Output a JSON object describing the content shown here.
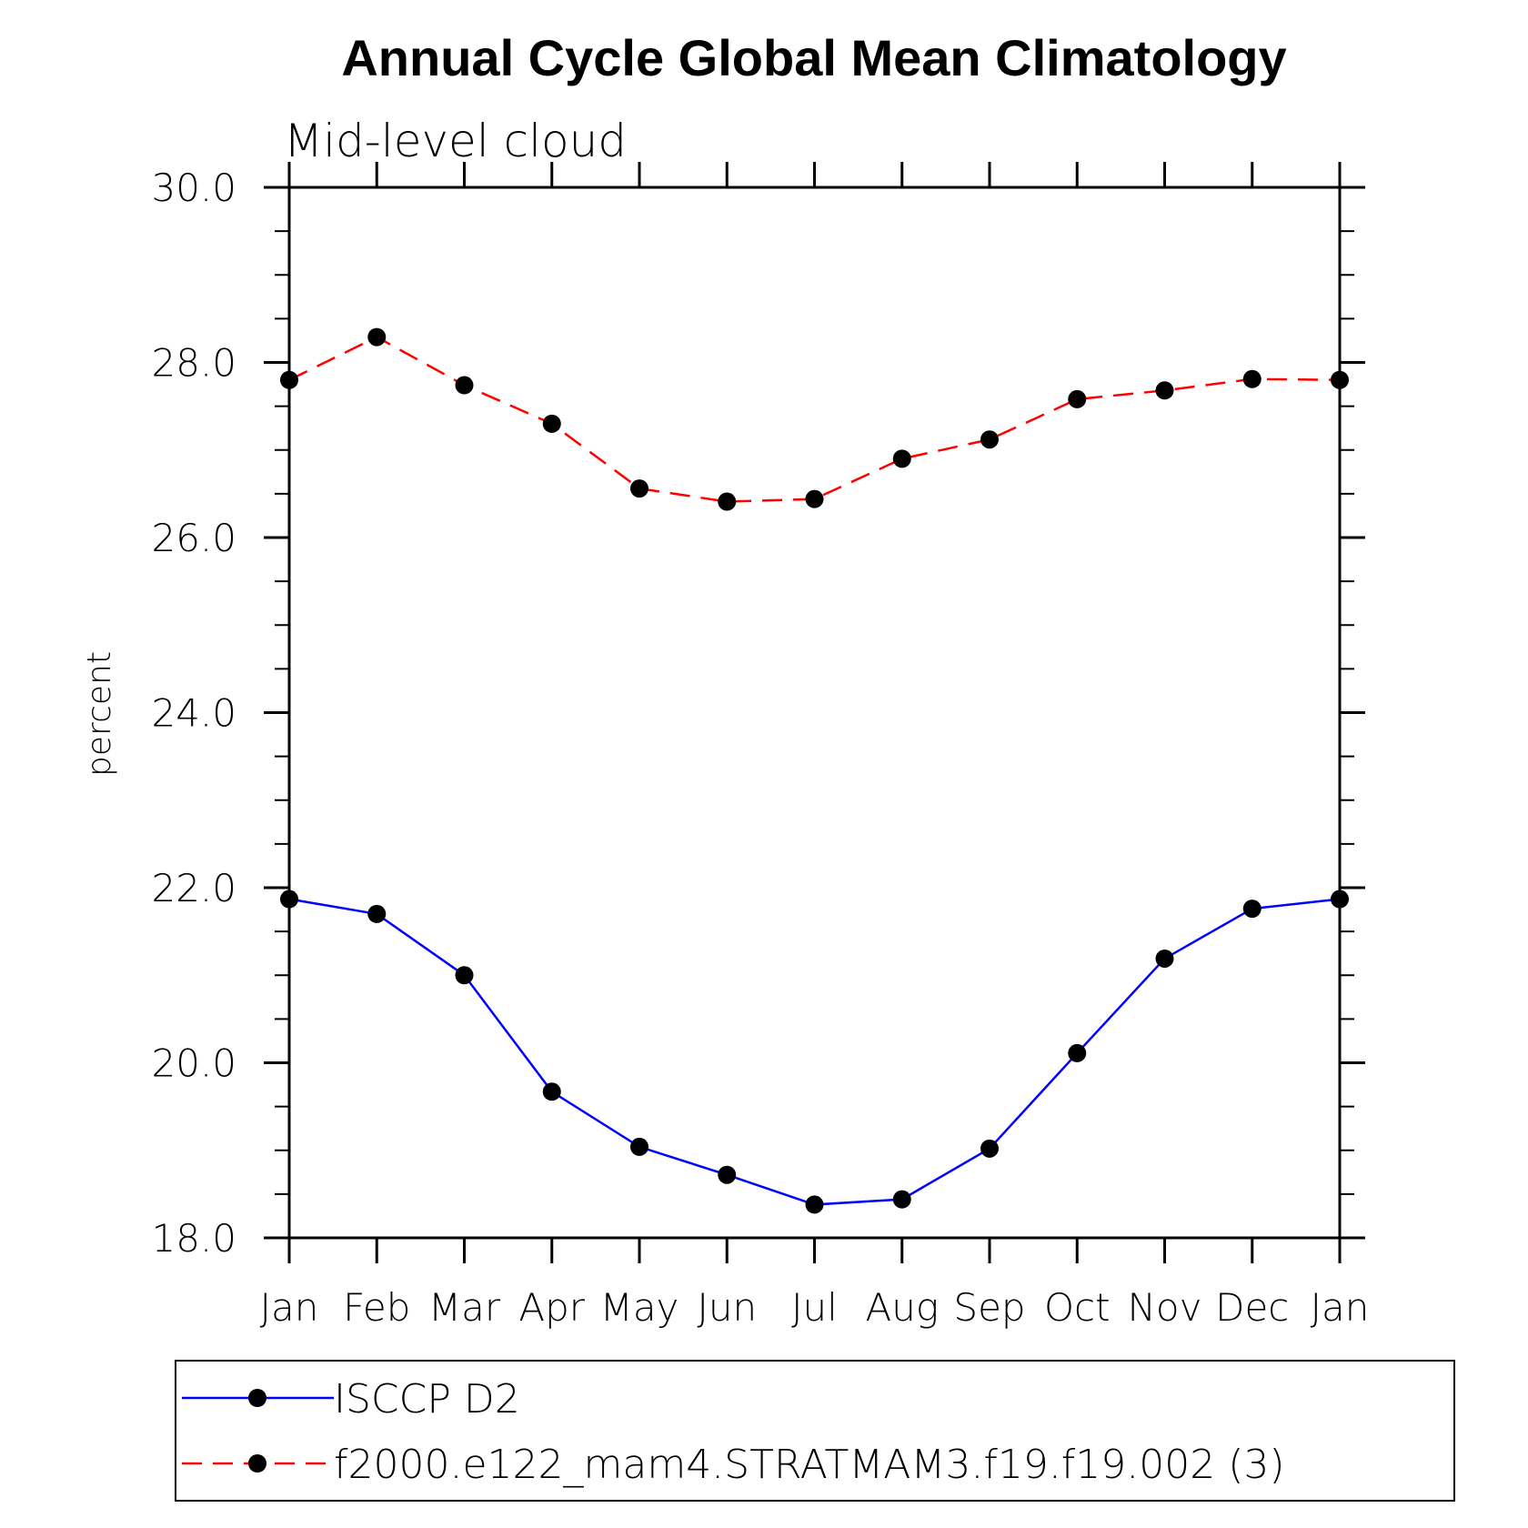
{
  "chart_data": {
    "type": "line",
    "title": "Annual Cycle Global Mean Climatology",
    "subtitle": "Mid-level cloud",
    "xlabel": "",
    "ylabel": "percent",
    "categories": [
      "Jan",
      "Feb",
      "Mar",
      "Apr",
      "May",
      "Jun",
      "Jul",
      "Aug",
      "Sep",
      "Oct",
      "Nov",
      "Dec",
      "Jan"
    ],
    "ylim": [
      18.0,
      30.0
    ],
    "yticks_major": [
      "18.0",
      "20.0",
      "22.0",
      "24.0",
      "26.0",
      "28.0",
      "30.0"
    ],
    "grid": false,
    "legend_position": "bottom",
    "series": [
      {
        "name": "ISCCP D2",
        "color": "#0000ff",
        "dash": "solid",
        "marker": "filled-circle",
        "values": [
          21.87,
          21.7,
          21.0,
          19.67,
          19.04,
          18.72,
          18.38,
          18.44,
          19.02,
          20.11,
          21.19,
          21.76,
          21.87
        ]
      },
      {
        "name": "f2000.e122_mam4.STRATMAM3.f19.f19.002 (3)",
        "color": "#ff0000",
        "dash": "dashed",
        "marker": "filled-circle",
        "values": [
          27.8,
          28.29,
          27.74,
          27.3,
          26.56,
          26.41,
          26.44,
          26.9,
          27.12,
          27.58,
          27.68,
          27.81,
          27.8
        ]
      }
    ]
  }
}
